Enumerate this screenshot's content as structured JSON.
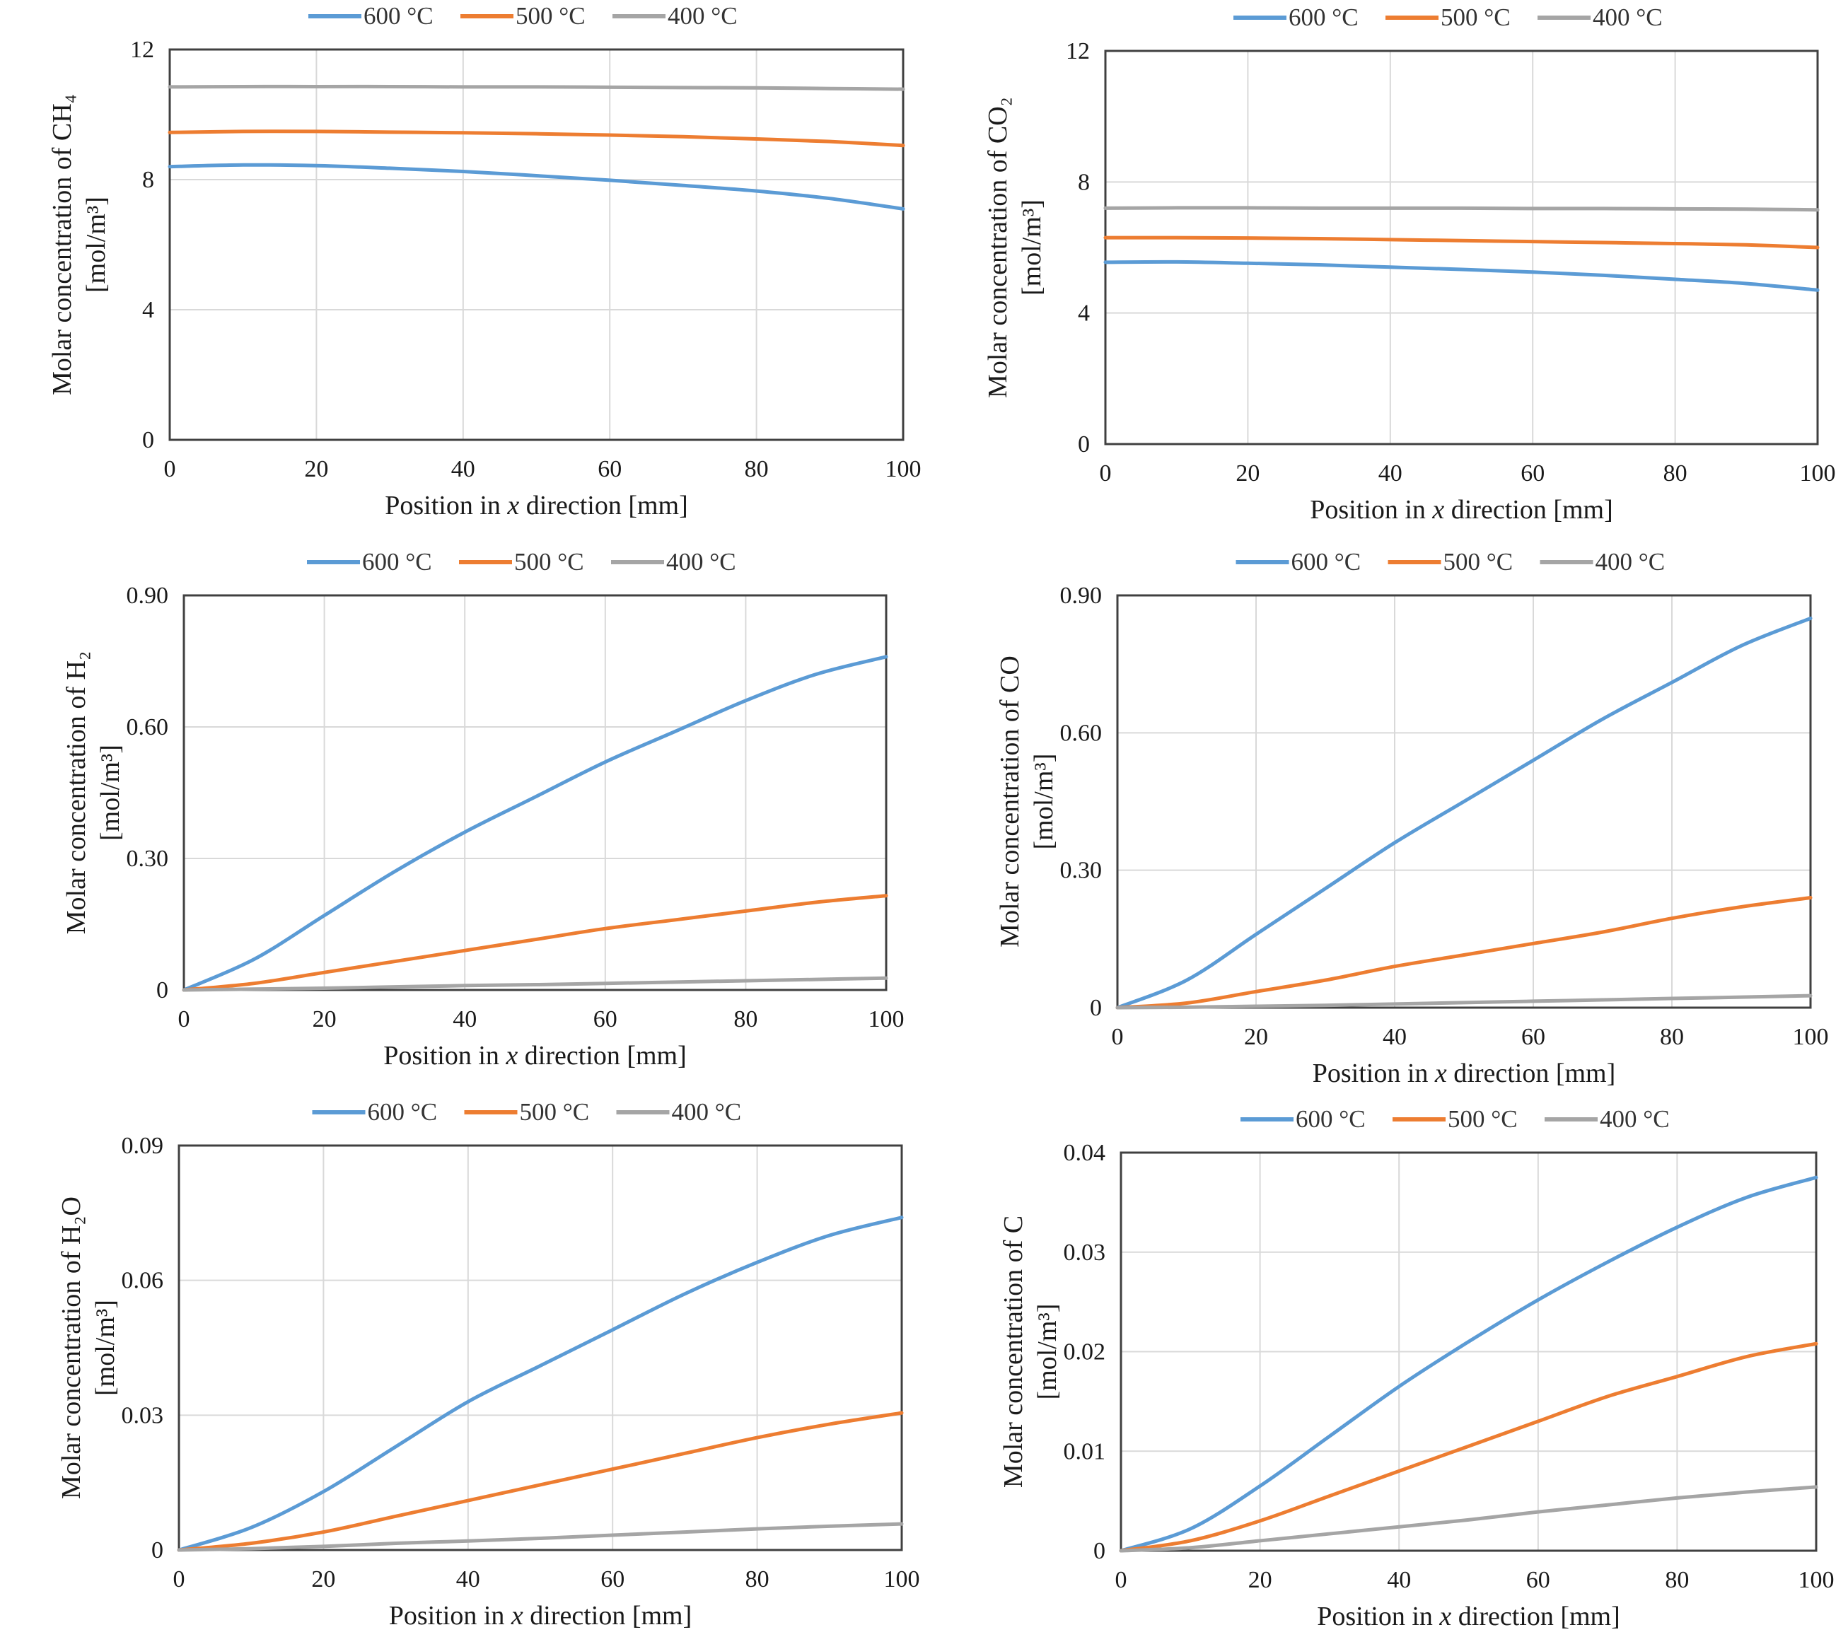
{
  "colors": {
    "600": "#5b9bd5",
    "500": "#ed7d31",
    "400": "#a5a5a5"
  },
  "legend": [
    "600 °C",
    "500 °C",
    "400 °C"
  ],
  "chart_data": [
    {
      "type": "line",
      "title": "",
      "xlabel": "Position in x direction [mm]",
      "ylabel": "Molar concentration of CH₄",
      "ylabel_unit": "[mol/m³]",
      "xlim": [
        0,
        100
      ],
      "ylim": [
        0,
        12
      ],
      "xticks": [
        "0",
        "20",
        "40",
        "60",
        "80",
        "100"
      ],
      "yticks": [
        "0",
        "4",
        "8",
        "12"
      ],
      "grid": true,
      "legend_position": "top",
      "x": [
        0,
        10,
        20,
        30,
        40,
        50,
        60,
        70,
        80,
        90,
        100
      ],
      "series": [
        {
          "name": "600 °C",
          "values": [
            8.4,
            8.45,
            8.43,
            8.35,
            8.25,
            8.12,
            7.98,
            7.82,
            7.65,
            7.42,
            7.1
          ]
        },
        {
          "name": "500 °C",
          "values": [
            9.45,
            9.48,
            9.48,
            9.46,
            9.44,
            9.41,
            9.37,
            9.32,
            9.25,
            9.17,
            9.05
          ]
        },
        {
          "name": "400 °C",
          "values": [
            10.85,
            10.86,
            10.86,
            10.86,
            10.85,
            10.85,
            10.84,
            10.83,
            10.82,
            10.8,
            10.78
          ]
        }
      ]
    },
    {
      "type": "line",
      "title": "",
      "xlabel": "Position in x direction [mm]",
      "ylabel": "Molar concentration of CO₂",
      "ylabel_unit": "[mol/m³]",
      "xlim": [
        0,
        100
      ],
      "ylim": [
        0,
        12
      ],
      "xticks": [
        "0",
        "20",
        "40",
        "60",
        "80",
        "100"
      ],
      "yticks": [
        "0",
        "4",
        "8",
        "12"
      ],
      "grid": true,
      "legend_position": "top",
      "x": [
        0,
        10,
        20,
        30,
        40,
        50,
        60,
        70,
        80,
        90,
        100
      ],
      "series": [
        {
          "name": "600 °C",
          "values": [
            5.55,
            5.56,
            5.52,
            5.47,
            5.4,
            5.33,
            5.25,
            5.15,
            5.03,
            4.9,
            4.7
          ]
        },
        {
          "name": "500 °C",
          "values": [
            6.3,
            6.3,
            6.29,
            6.27,
            6.24,
            6.21,
            6.18,
            6.15,
            6.12,
            6.08,
            6.0
          ]
        },
        {
          "name": "400 °C",
          "values": [
            7.2,
            7.21,
            7.21,
            7.2,
            7.2,
            7.2,
            7.19,
            7.19,
            7.18,
            7.17,
            7.15
          ]
        }
      ]
    },
    {
      "type": "line",
      "title": "",
      "xlabel": "Position in x direction [mm]",
      "ylabel": "Molar concentration of H₂",
      "ylabel_unit": "[mol/m³]",
      "xlim": [
        0,
        100
      ],
      "ylim": [
        0,
        0.9
      ],
      "xticks": [
        "0",
        "20",
        "40",
        "60",
        "80",
        "100"
      ],
      "yticks": [
        "0",
        "0.30",
        "0.60",
        "0.90"
      ],
      "grid": true,
      "legend_position": "top",
      "x": [
        0,
        10,
        20,
        30,
        40,
        50,
        60,
        70,
        80,
        90,
        100
      ],
      "series": [
        {
          "name": "600 °C",
          "values": [
            0,
            0.07,
            0.17,
            0.27,
            0.36,
            0.44,
            0.52,
            0.59,
            0.66,
            0.72,
            0.76
          ]
        },
        {
          "name": "500 °C",
          "values": [
            0,
            0.015,
            0.04,
            0.065,
            0.09,
            0.115,
            0.14,
            0.16,
            0.18,
            0.2,
            0.215
          ]
        },
        {
          "name": "400 °C",
          "values": [
            0,
            0.002,
            0.004,
            0.007,
            0.01,
            0.012,
            0.015,
            0.018,
            0.021,
            0.024,
            0.027
          ]
        }
      ]
    },
    {
      "type": "line",
      "title": "",
      "xlabel": "Position in x direction [mm]",
      "ylabel": "Molar concentration of CO",
      "ylabel_unit": "[mol/m³]",
      "xlim": [
        0,
        100
      ],
      "ylim": [
        0,
        0.9
      ],
      "xticks": [
        "0",
        "20",
        "40",
        "60",
        "80",
        "100"
      ],
      "yticks": [
        "0",
        "0.30",
        "0.60",
        "0.90"
      ],
      "grid": true,
      "legend_position": "top",
      "x": [
        0,
        10,
        20,
        30,
        40,
        50,
        60,
        70,
        80,
        90,
        100
      ],
      "series": [
        {
          "name": "600 °C",
          "values": [
            0,
            0.06,
            0.16,
            0.26,
            0.36,
            0.45,
            0.54,
            0.63,
            0.71,
            0.79,
            0.85
          ]
        },
        {
          "name": "500 °C",
          "values": [
            0,
            0.01,
            0.035,
            0.06,
            0.09,
            0.115,
            0.14,
            0.165,
            0.195,
            0.22,
            0.24
          ]
        },
        {
          "name": "400 °C",
          "values": [
            0,
            0.001,
            0.003,
            0.005,
            0.008,
            0.011,
            0.014,
            0.017,
            0.02,
            0.023,
            0.026
          ]
        }
      ]
    },
    {
      "type": "line",
      "title": "",
      "xlabel": "Position in x direction [mm]",
      "ylabel": "Molar concentration of H₂O",
      "ylabel_unit": "[mol/m³]",
      "xlim": [
        0,
        100
      ],
      "ylim": [
        0,
        0.09
      ],
      "xticks": [
        "0",
        "20",
        "40",
        "60",
        "80",
        "100"
      ],
      "yticks": [
        "0",
        "0.03",
        "0.06",
        "0.09"
      ],
      "grid": true,
      "legend_position": "top",
      "x": [
        0,
        10,
        20,
        30,
        40,
        50,
        60,
        70,
        80,
        90,
        100
      ],
      "series": [
        {
          "name": "600 °C",
          "values": [
            0,
            0.005,
            0.013,
            0.023,
            0.033,
            0.041,
            0.049,
            0.057,
            0.064,
            0.07,
            0.074
          ]
        },
        {
          "name": "500 °C",
          "values": [
            0,
            0.0015,
            0.004,
            0.0075,
            0.011,
            0.0145,
            0.018,
            0.0215,
            0.025,
            0.028,
            0.0305
          ]
        },
        {
          "name": "400 °C",
          "values": [
            0,
            0.0003,
            0.0008,
            0.0015,
            0.002,
            0.0026,
            0.0033,
            0.004,
            0.0047,
            0.0053,
            0.0058
          ]
        }
      ]
    },
    {
      "type": "line",
      "title": "",
      "xlabel": "Position in x direction [mm]",
      "ylabel": "Molar concentration of C",
      "ylabel_unit": "[mol/m³]",
      "xlim": [
        0,
        100
      ],
      "ylim": [
        0,
        0.04
      ],
      "xticks": [
        "0",
        "20",
        "40",
        "60",
        "80",
        "100"
      ],
      "yticks": [
        "0",
        "0.01",
        "0.02",
        "0.03",
        "0.04"
      ],
      "grid": true,
      "legend_position": "top",
      "x": [
        0,
        10,
        20,
        30,
        40,
        50,
        60,
        70,
        80,
        90,
        100
      ],
      "series": [
        {
          "name": "600 °C",
          "values": [
            0,
            0.0022,
            0.0065,
            0.0115,
            0.0165,
            0.021,
            0.0252,
            0.029,
            0.0325,
            0.0355,
            0.0375
          ]
        },
        {
          "name": "500 °C",
          "values": [
            0,
            0.001,
            0.003,
            0.0055,
            0.008,
            0.0105,
            0.013,
            0.0155,
            0.0175,
            0.0195,
            0.0208
          ]
        },
        {
          "name": "400 °C",
          "values": [
            0,
            0.0003,
            0.001,
            0.0017,
            0.0024,
            0.0031,
            0.0039,
            0.0046,
            0.0053,
            0.0059,
            0.0064
          ]
        }
      ]
    }
  ]
}
